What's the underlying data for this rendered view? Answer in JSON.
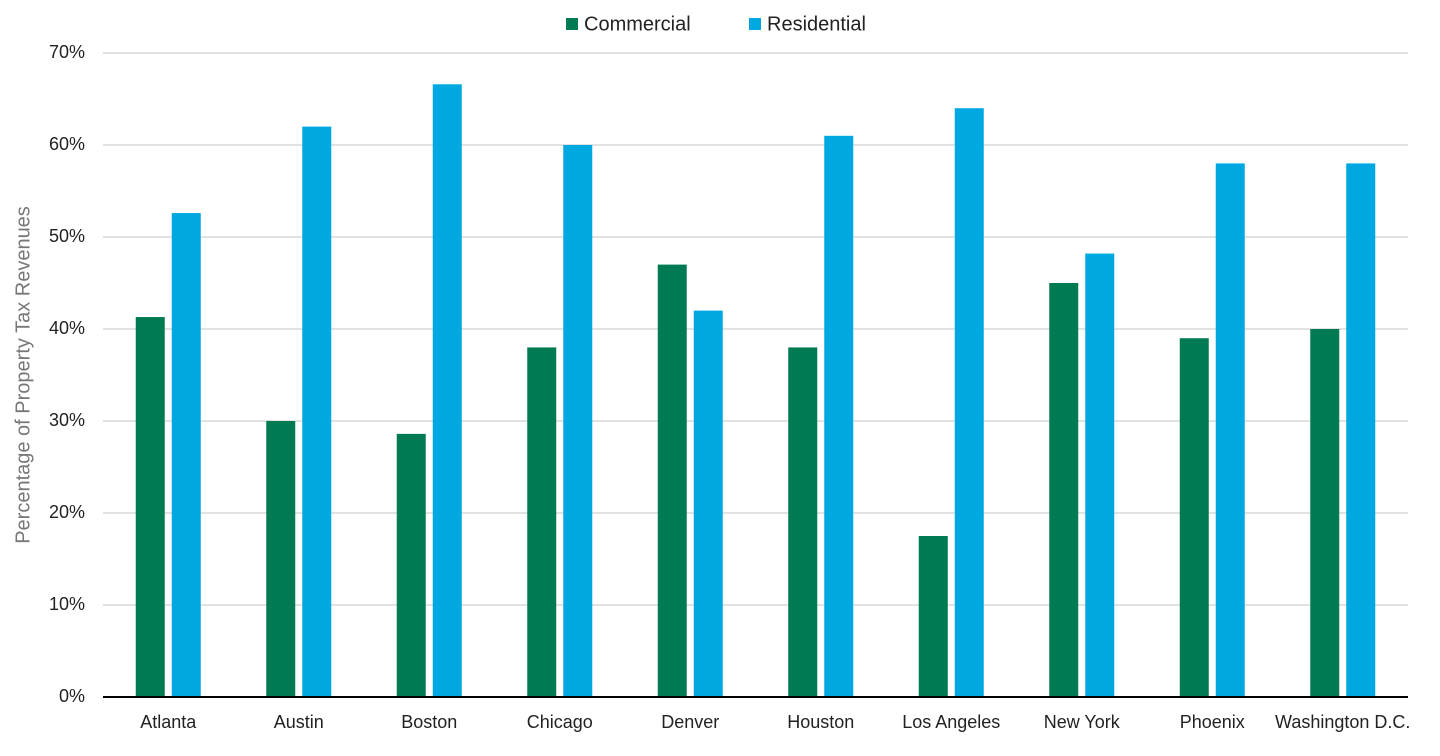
{
  "chart_data": {
    "type": "bar",
    "y_label": "Percentage of Property Tax Revenues",
    "categories": [
      "Atlanta",
      "Austin",
      "Boston",
      "Chicago",
      "Denver",
      "Houston",
      "Los Angeles",
      "New York",
      "Phoenix",
      "Washington D.C."
    ],
    "series": [
      {
        "name": "Commercial",
        "color": "#007a53",
        "values": [
          41.3,
          30,
          28.6,
          38,
          47,
          38,
          17.5,
          45,
          39,
          40
        ]
      },
      {
        "name": "Residential",
        "color": "#00a8e1",
        "values": [
          52.6,
          62,
          66.6,
          60,
          42,
          61,
          64,
          48.2,
          58,
          58
        ]
      }
    ],
    "ylim": [
      0,
      70
    ],
    "yticks": [
      {
        "value": 0,
        "label": "0%"
      },
      {
        "value": 10,
        "label": "10%"
      },
      {
        "value": 20,
        "label": "20%"
      },
      {
        "value": 30,
        "label": "30%"
      },
      {
        "value": 40,
        "label": "40%"
      },
      {
        "value": 50,
        "label": "50%"
      },
      {
        "value": 60,
        "label": "60%"
      },
      {
        "value": 70,
        "label": "70%"
      }
    ],
    "grid": true,
    "legend": "top"
  }
}
